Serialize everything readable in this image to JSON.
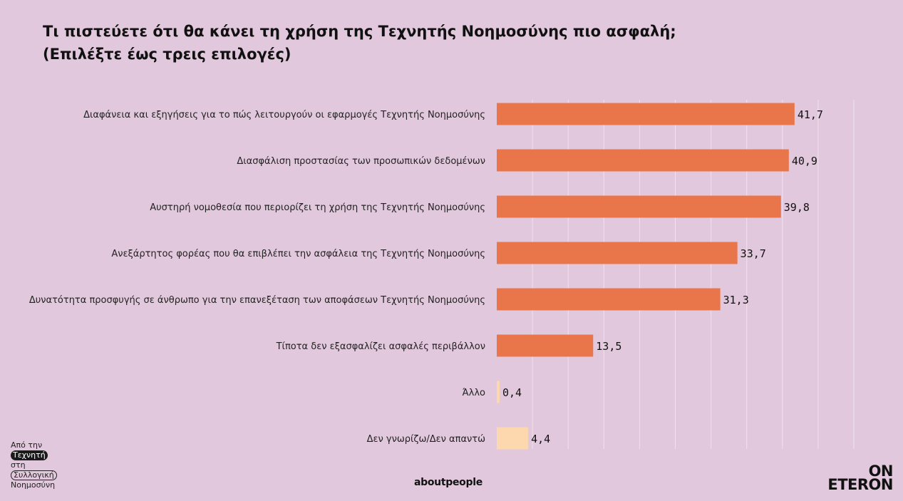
{
  "title": {
    "line1": "Τι πιστεύετε ότι θα κάνει τη χρήση της Τεχνητής Νοημοσύνης πιο ασφαλή;",
    "line2": "(Επιλέξτε έως τρεις επιλογές)"
  },
  "chart_data": {
    "type": "bar",
    "orientation": "horizontal",
    "title": "Τι πιστεύετε ότι θα κάνει τη χρήση της Τεχνητής Νοημοσύνης πιο ασφαλή; (Επιλέξτε έως τρεις επιλογές)",
    "categories": [
      "Διαφάνεια και εξηγήσεις για το πώς λειτουργούν οι εφαρμογές Τεχνητής Νοημοσύνης",
      "Διασφάλιση προστασίας των προσωπικών δεδομένων",
      "Αυστηρή νομοθεσία που περιορίζει τη χρήση της Τεχνητής Νοημοσύνης",
      "Ανεξάρτητος φορέας που θα επιβλέπει την ασφάλεια της Τεχνητής Νοημοσύνης",
      "Δυνατότητα προσφυγής σε άνθρωπο για την επανεξέταση των αποφάσεων Τεχνητής Νοημοσύνης",
      "Τίποτα δεν εξασφαλίζει ασφαλές περιβάλλον",
      "Άλλο",
      "Δεν γνωρίζω/Δεν απαντώ"
    ],
    "values": [
      41.7,
      40.9,
      39.8,
      33.7,
      31.3,
      13.5,
      0.4,
      4.4
    ],
    "value_labels": [
      "41,7",
      "40,9",
      "39,8",
      "33,7",
      "31,3",
      "13,5",
      "0,4",
      "4,4"
    ],
    "bar_colors": [
      "#E8764A",
      "#E8764A",
      "#E8764A",
      "#E8764A",
      "#E8764A",
      "#E8764A",
      "#FDD8AE",
      "#FDD8AE"
    ],
    "xlim": [
      0,
      50
    ],
    "grid": true
  },
  "footer": {
    "tag_line1": "Από την",
    "tag_line2": "Τεχνητή",
    "tag_line3": "στη",
    "tag_line4": "Συλλογική",
    "tag_line5": "Νοημοσύνη",
    "brand_center": "aboutpeople",
    "brand_right_line1": "ON",
    "brand_right_line2": "ETERON"
  },
  "colors": {
    "background": "#E2C8DC",
    "bar_primary": "#E8764A",
    "bar_secondary": "#FDD8AE",
    "gridline": "#EFE3EC"
  }
}
